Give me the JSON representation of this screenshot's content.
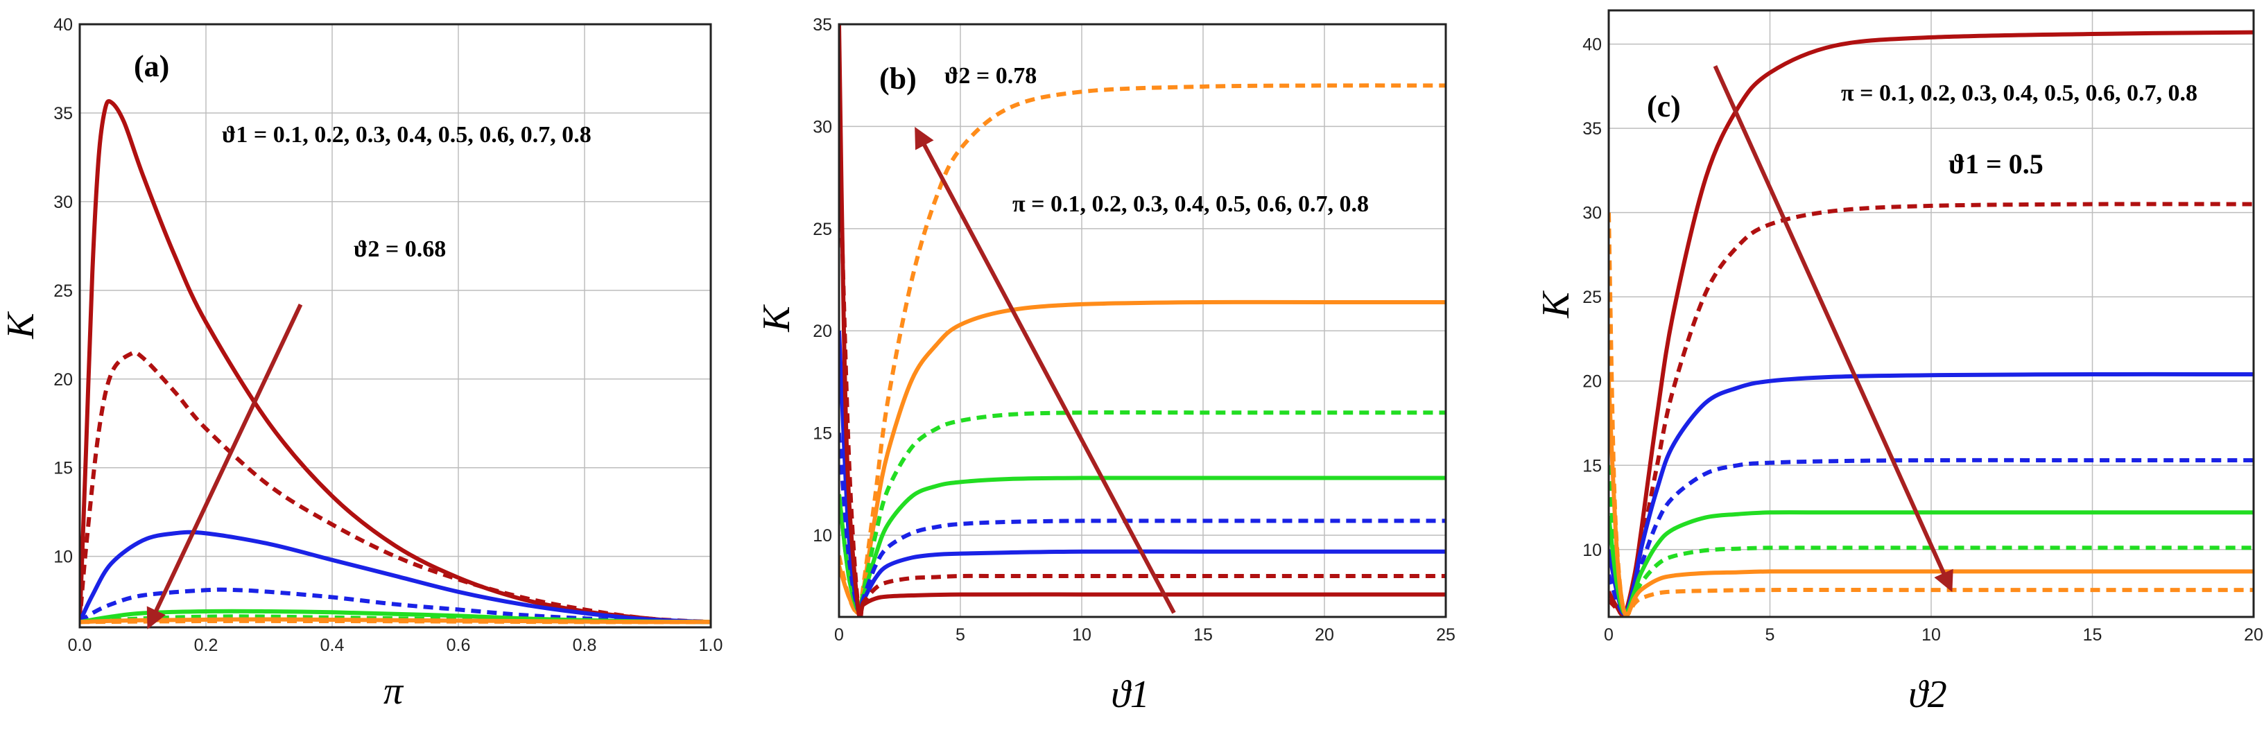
{
  "colors": {
    "dark_red": "#b01010",
    "blue": "#1a22e6",
    "green": "#22dd22",
    "orange": "#ff8c1a",
    "grid": "#bdbdbd",
    "arrow": "#a82020"
  },
  "chart_data": [
    {
      "type": "line",
      "panel_label": "(a)",
      "xlabel": "π",
      "ylabel": "K",
      "xlim": [
        0,
        1
      ],
      "ylim": [
        6,
        40
      ],
      "x_ticks": [
        "0.0",
        "0.2",
        "0.4",
        "0.6",
        "0.8",
        "1.0"
      ],
      "y_ticks": [
        "10",
        "15",
        "20",
        "25",
        "30",
        "35",
        "40"
      ],
      "annotations": [
        "ϑ1 = 0.1, 0.2, 0.3, 0.4, 0.5, 0.6, 0.7, 0.8",
        "ϑ2 = 0.68"
      ],
      "series": [
        {
          "name": "ϑ1 = 0.1",
          "color": "dark_red",
          "dash": false,
          "x": [
            0,
            0.01,
            0.02,
            0.03,
            0.04,
            0.05,
            0.07,
            0.1,
            0.15,
            0.2,
            0.3,
            0.4,
            0.5,
            0.6,
            0.7,
            0.8,
            0.9,
            0.95,
            1.0
          ],
          "y": [
            6.3,
            16,
            26,
            32.5,
            35.2,
            35.6,
            34.5,
            31.5,
            27,
            23.2,
            17.5,
            13.4,
            10.6,
            8.8,
            7.6,
            6.9,
            6.5,
            6.35,
            6.3
          ]
        },
        {
          "name": "ϑ1 = 0.2",
          "color": "dark_red",
          "dash": true,
          "x": [
            0,
            0.01,
            0.03,
            0.05,
            0.08,
            0.1,
            0.15,
            0.2,
            0.3,
            0.4,
            0.5,
            0.6,
            0.7,
            0.8,
            0.9,
            1.0
          ],
          "y": [
            6.3,
            10.5,
            17,
            20.3,
            21.4,
            21.2,
            19.3,
            17.2,
            14,
            11.8,
            10,
            8.7,
            7.7,
            7,
            6.5,
            6.3
          ]
        },
        {
          "name": "ϑ1 = 0.3",
          "color": "blue",
          "dash": false,
          "x": [
            0,
            0.02,
            0.05,
            0.1,
            0.15,
            0.2,
            0.3,
            0.4,
            0.5,
            0.6,
            0.7,
            0.8,
            0.9,
            1.0
          ],
          "y": [
            6.3,
            7.8,
            9.6,
            10.9,
            11.3,
            11.3,
            10.7,
            9.8,
            8.9,
            8.0,
            7.3,
            6.8,
            6.45,
            6.3
          ]
        },
        {
          "name": "ϑ1 = 0.4",
          "color": "blue",
          "dash": true,
          "x": [
            0,
            0.02,
            0.05,
            0.1,
            0.2,
            0.25,
            0.3,
            0.4,
            0.5,
            0.6,
            0.7,
            0.8,
            0.9,
            1.0
          ],
          "y": [
            6.3,
            6.8,
            7.3,
            7.8,
            8.1,
            8.1,
            8.0,
            7.7,
            7.3,
            7.0,
            6.7,
            6.5,
            6.35,
            6.3
          ]
        },
        {
          "name": "ϑ1 = 0.5",
          "color": "green",
          "dash": false,
          "x": [
            0,
            0.05,
            0.1,
            0.2,
            0.3,
            0.4,
            0.5,
            0.6,
            0.7,
            0.8,
            0.9,
            1.0
          ],
          "y": [
            6.3,
            6.6,
            6.8,
            6.9,
            6.9,
            6.85,
            6.75,
            6.65,
            6.5,
            6.4,
            6.33,
            6.3
          ]
        },
        {
          "name": "ϑ1 = 0.6",
          "color": "green",
          "dash": true,
          "x": [
            0,
            0.1,
            0.2,
            0.3,
            0.5,
            0.7,
            0.9,
            1.0
          ],
          "y": [
            6.3,
            6.5,
            6.6,
            6.6,
            6.5,
            6.4,
            6.32,
            6.3
          ]
        },
        {
          "name": "ϑ1 = 0.7",
          "color": "orange",
          "dash": false,
          "x": [
            0,
            0.1,
            0.3,
            0.5,
            0.7,
            0.9,
            1.0
          ],
          "y": [
            6.3,
            6.4,
            6.45,
            6.4,
            6.35,
            6.3,
            6.3
          ]
        },
        {
          "name": "ϑ1 = 0.8",
          "color": "orange",
          "dash": true,
          "x": [
            0,
            0.2,
            0.4,
            0.6,
            0.8,
            1.0
          ],
          "y": [
            6.3,
            6.35,
            6.35,
            6.33,
            6.3,
            6.3
          ]
        }
      ],
      "arrow": {
        "from": [
          0.35,
          24.2
        ],
        "to": [
          0.11,
          6.1
        ]
      }
    },
    {
      "type": "line",
      "panel_label": "(b)",
      "xlabel": "ϑ1",
      "ylabel": "K",
      "xlim": [
        0,
        25
      ],
      "ylim": [
        6,
        35
      ],
      "x_ticks": [
        "0",
        "5",
        "10",
        "15",
        "20",
        "25"
      ],
      "y_ticks": [
        "10",
        "15",
        "20",
        "25",
        "30",
        "35"
      ],
      "annotations": [
        "ϑ2 = 0.78",
        "π = 0.1, 0.2, 0.3, 0.4, 0.5, 0.6, 0.7, 0.8"
      ],
      "series": [
        {
          "name": "π = 0.1",
          "color": "orange",
          "dash": true,
          "x": [
            0,
            0.4,
            0.8,
            1,
            1.5,
            2,
            3,
            4,
            5,
            7,
            10,
            15,
            20,
            25
          ],
          "y": [
            9,
            7,
            6.2,
            7.5,
            12,
            16.5,
            22.5,
            26.5,
            28.9,
            30.9,
            31.7,
            31.95,
            32,
            32
          ]
        },
        {
          "name": "π = 0.2",
          "color": "orange",
          "dash": false,
          "x": [
            0,
            0.4,
            0.8,
            1,
            1.5,
            2,
            3,
            4,
            5,
            7,
            10,
            15,
            20,
            25
          ],
          "y": [
            8.5,
            7,
            6.2,
            7.3,
            11,
            14,
            17.6,
            19.3,
            20.3,
            21,
            21.3,
            21.4,
            21.4,
            21.4
          ]
        },
        {
          "name": "π = 0.3",
          "color": "green",
          "dash": true,
          "x": [
            0,
            0.4,
            0.8,
            1,
            1.5,
            2,
            3,
            4,
            5,
            7,
            10,
            15,
            20,
            25
          ],
          "y": [
            12,
            8,
            6.3,
            7.2,
            10,
            12.2,
            14.3,
            15.2,
            15.6,
            15.9,
            16,
            16,
            16,
            16
          ]
        },
        {
          "name": "π = 0.4",
          "color": "green",
          "dash": false,
          "x": [
            0,
            0.4,
            0.8,
            1,
            1.5,
            2,
            3,
            4,
            5,
            7,
            10,
            15,
            20,
            25
          ],
          "y": [
            12,
            8,
            6.3,
            7,
            9,
            10.5,
            11.9,
            12.4,
            12.6,
            12.75,
            12.8,
            12.8,
            12.8,
            12.8
          ]
        },
        {
          "name": "π = 0.5",
          "color": "blue",
          "dash": true,
          "x": [
            0,
            0.4,
            0.8,
            1,
            1.5,
            2,
            3,
            4,
            5,
            7,
            10,
            15,
            20,
            25
          ],
          "y": [
            15,
            9,
            6.3,
            6.9,
            8.5,
            9.4,
            10.1,
            10.4,
            10.55,
            10.65,
            10.7,
            10.7,
            10.7,
            10.7
          ]
        },
        {
          "name": "π = 0.6",
          "color": "blue",
          "dash": false,
          "x": [
            0,
            0.4,
            0.8,
            1,
            1.5,
            2,
            3,
            4,
            5,
            7,
            10,
            15,
            20,
            25
          ],
          "y": [
            20,
            10,
            6.3,
            6.8,
            7.9,
            8.5,
            8.9,
            9.05,
            9.1,
            9.15,
            9.2,
            9.2,
            9.2,
            9.2
          ]
        },
        {
          "name": "π = 0.7",
          "color": "dark_red",
          "dash": true,
          "x": [
            0,
            0.4,
            0.8,
            1,
            1.5,
            2,
            3,
            4,
            5,
            7,
            10,
            15,
            20,
            25
          ],
          "y": [
            30,
            14,
            6.3,
            6.7,
            7.4,
            7.7,
            7.9,
            7.95,
            8,
            8,
            8,
            8,
            8,
            8
          ]
        },
        {
          "name": "π = 0.8",
          "color": "dark_red",
          "dash": false,
          "x": [
            0,
            0.2,
            0.4,
            0.8,
            1,
            1.5,
            2,
            3,
            5,
            10,
            15,
            20,
            25
          ],
          "y": [
            35,
            20,
            12,
            6.3,
            6.6,
            6.9,
            7,
            7.05,
            7.1,
            7.1,
            7.1,
            7.1,
            7.1
          ]
        }
      ],
      "arrow": {
        "from": [
          13.8,
          6.2
        ],
        "to": [
          3.2,
          29.8
        ]
      }
    },
    {
      "type": "line",
      "panel_label": "(c)",
      "xlabel": "ϑ2",
      "ylabel": "K",
      "xlim": [
        0,
        20
      ],
      "ylim": [
        6,
        42
      ],
      "x_ticks": [
        "0",
        "5",
        "10",
        "15",
        "20"
      ],
      "y_ticks": [
        "10",
        "15",
        "20",
        "25",
        "30",
        "35",
        "40"
      ],
      "annotations": [
        "π = 0.1, 0.2, 0.3, 0.4, 0.5, 0.6, 0.7, 0.8",
        "ϑ1 = 0.5"
      ],
      "series": [
        {
          "name": "π = 0.1",
          "color": "dark_red",
          "dash": false,
          "x": [
            0,
            0.25,
            0.5,
            0.8,
            1,
            1.5,
            2,
            3,
            4,
            5,
            7,
            10,
            15,
            20
          ],
          "y": [
            7.5,
            6.6,
            6.2,
            8.5,
            11,
            18,
            24,
            32,
            36.2,
            38.3,
            39.9,
            40.4,
            40.6,
            40.7
          ]
        },
        {
          "name": "π = 0.2",
          "color": "dark_red",
          "dash": true,
          "x": [
            0,
            0.25,
            0.5,
            0.8,
            1,
            1.5,
            2,
            3,
            4,
            5,
            7,
            10,
            15,
            20
          ],
          "y": [
            7,
            6.5,
            6.2,
            8,
            10,
            15,
            19.5,
            25.2,
            28,
            29.3,
            30.1,
            30.4,
            30.5,
            30.5
          ]
        },
        {
          "name": "π = 0.3",
          "color": "blue",
          "dash": false,
          "x": [
            0,
            0.25,
            0.5,
            0.8,
            1,
            1.5,
            2,
            3,
            4,
            5,
            7,
            10,
            15,
            20
          ],
          "y": [
            10,
            7.5,
            6.2,
            8,
            10,
            13.6,
            16.2,
            18.7,
            19.6,
            20,
            20.25,
            20.35,
            20.4,
            20.4
          ]
        },
        {
          "name": "π = 0.4",
          "color": "blue",
          "dash": true,
          "x": [
            0,
            0.25,
            0.5,
            0.8,
            1,
            1.5,
            2,
            3,
            4,
            5,
            7,
            10,
            15,
            20
          ],
          "y": [
            8.5,
            7,
            6.2,
            7.6,
            9,
            11.6,
            13.1,
            14.5,
            15,
            15.15,
            15.25,
            15.3,
            15.3,
            15.3
          ]
        },
        {
          "name": "π = 0.5",
          "color": "green",
          "dash": false,
          "x": [
            0,
            0.25,
            0.5,
            0.8,
            1,
            1.5,
            2,
            3,
            4,
            5,
            7,
            10,
            15,
            20
          ],
          "y": [
            12,
            8,
            6.2,
            7.5,
            8.6,
            10.3,
            11.2,
            11.9,
            12.1,
            12.2,
            12.2,
            12.2,
            12.2,
            12.2
          ]
        },
        {
          "name": "π = 0.6",
          "color": "green",
          "dash": true,
          "x": [
            0,
            0.25,
            0.5,
            0.8,
            1,
            1.5,
            2,
            3,
            4,
            5,
            7,
            10,
            15,
            20
          ],
          "y": [
            15,
            8.5,
            6.2,
            7.2,
            8,
            9.1,
            9.6,
            9.95,
            10.05,
            10.1,
            10.1,
            10.1,
            10.1,
            10.1
          ]
        },
        {
          "name": "π = 0.7",
          "color": "orange",
          "dash": false,
          "x": [
            0,
            0.25,
            0.5,
            0.8,
            1,
            1.5,
            2,
            3,
            4,
            5,
            7,
            10,
            15,
            20
          ],
          "y": [
            20,
            10,
            6.2,
            7.1,
            7.6,
            8.2,
            8.45,
            8.6,
            8.65,
            8.7,
            8.7,
            8.7,
            8.7,
            8.7
          ]
        },
        {
          "name": "π = 0.8",
          "color": "orange",
          "dash": true,
          "x": [
            0,
            0.15,
            0.3,
            0.5,
            0.8,
            1,
            1.5,
            2,
            3,
            5,
            10,
            15,
            20
          ],
          "y": [
            30,
            15,
            9,
            6.2,
            6.8,
            7.1,
            7.4,
            7.5,
            7.55,
            7.6,
            7.6,
            7.6,
            7.6
          ]
        }
      ],
      "arrow": {
        "from": [
          3.3,
          38.7
        ],
        "to": [
          10.6,
          7.7
        ]
      }
    }
  ]
}
